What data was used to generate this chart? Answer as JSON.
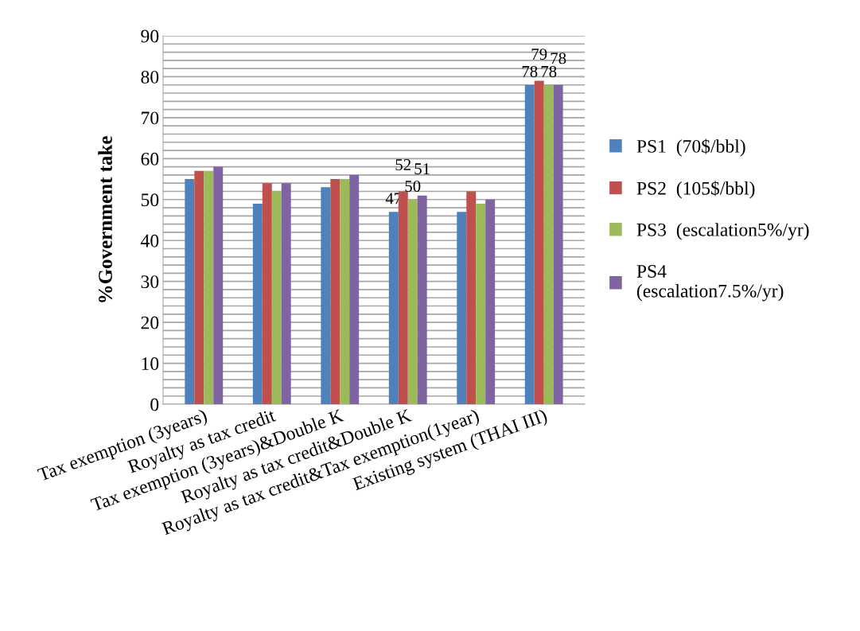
{
  "chart_data": {
    "type": "bar",
    "ylabel": "%Government take",
    "categories": [
      "Tax exemption (3years)",
      "Royalty as tax credit",
      "Tax exemption (3years)&Double K",
      "Royalty as tax credit&Double K",
      "Royalty as tax credit&Tax exemption(1year)",
      "Existing system (THAI III)"
    ],
    "series": [
      {
        "name": "PS1  (70$/bbl)",
        "color": "#4f81bd",
        "values": [
          55,
          49,
          53,
          47,
          47,
          78
        ],
        "value_labels": [
          null,
          null,
          null,
          "47",
          null,
          "78"
        ]
      },
      {
        "name": "PS2  (105$/bbl)",
        "color": "#c0504d",
        "values": [
          57,
          54,
          55,
          52,
          52,
          79
        ],
        "value_labels": [
          null,
          null,
          null,
          "52",
          null,
          "79"
        ]
      },
      {
        "name": "PS3  (escalation5%/yr)",
        "color": "#9bbb59",
        "values": [
          57,
          52,
          55,
          50,
          49,
          78
        ],
        "value_labels": [
          null,
          null,
          null,
          "50",
          null,
          "78"
        ]
      },
      {
        "name": "PS4\n(escalation7.5%/yr)",
        "color": "#8064a2",
        "values": [
          58,
          54,
          56,
          51,
          50,
          78
        ],
        "value_labels": [
          null,
          null,
          null,
          "51",
          null,
          "78"
        ]
      }
    ],
    "ylim": [
      0,
      90
    ],
    "yticks": [
      0,
      {
        "value": 2,
        "label": null
      },
      {
        "value": 4,
        "label": null
      },
      {
        "value": 6,
        "label": null
      },
      {
        "value": 8,
        "label": null
      },
      10,
      {
        "value": 12,
        "label": null
      },
      {
        "value": 14,
        "label": null
      },
      {
        "value": 16,
        "label": null
      },
      {
        "value": 18,
        "label": null
      },
      20,
      {
        "value": 22,
        "label": null
      },
      {
        "value": 24,
        "label": null
      },
      {
        "value": 26,
        "label": null
      },
      {
        "value": 28,
        "label": null
      },
      30,
      {
        "value": 32,
        "label": null
      },
      {
        "value": 34,
        "label": null
      },
      {
        "value": 36,
        "label": null
      },
      {
        "value": 38,
        "label": null
      },
      40,
      {
        "value": 42,
        "label": null
      },
      {
        "value": 44,
        "label": null
      },
      {
        "value": 46,
        "label": null
      },
      {
        "value": 48,
        "label": null
      },
      50,
      {
        "value": 52,
        "label": null
      },
      {
        "value": 54,
        "label": null
      },
      {
        "value": 56,
        "label": null
      },
      {
        "value": 58,
        "label": null
      },
      60,
      {
        "value": 62,
        "label": null
      },
      {
        "value": 64,
        "label": null
      },
      {
        "value": 66,
        "label": null
      },
      {
        "value": 68,
        "label": null
      },
      70,
      {
        "value": 72,
        "label": null
      },
      {
        "value": 74,
        "label": null
      },
      {
        "value": 76,
        "label": null
      },
      {
        "value": 78,
        "label": null
      },
      80,
      {
        "value": 82,
        "label": null
      },
      {
        "value": 84,
        "label": null
      },
      {
        "value": 86,
        "label": null
      },
      {
        "value": 88,
        "label": null
      },
      90
    ],
    "grid": "y",
    "legend": "right"
  }
}
